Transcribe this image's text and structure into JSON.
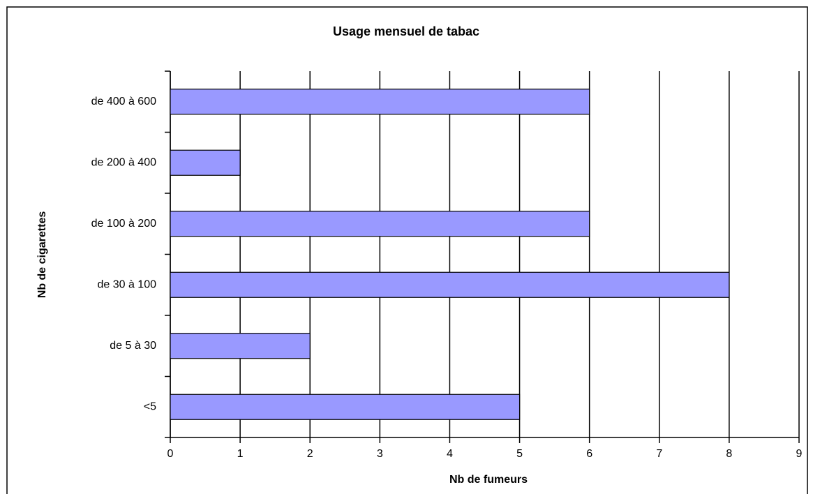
{
  "chart_data": {
    "type": "bar",
    "orientation": "horizontal",
    "title": "Usage mensuel de tabac",
    "x_label": "Nb de fumeurs",
    "y_label": "Nb de cigarettes",
    "categories": [
      "de 400 à 600",
      "de 200 à 400",
      "de 100 à 200",
      "de 30 à 100",
      "de 5 à 30",
      "<5"
    ],
    "values": [
      6,
      1,
      6,
      8,
      2,
      5
    ],
    "color": "#9999ff",
    "xlim": [
      0,
      9
    ],
    "xticks": [
      0,
      1,
      2,
      3,
      4,
      5,
      6,
      7,
      8,
      9
    ],
    "grid": true
  }
}
